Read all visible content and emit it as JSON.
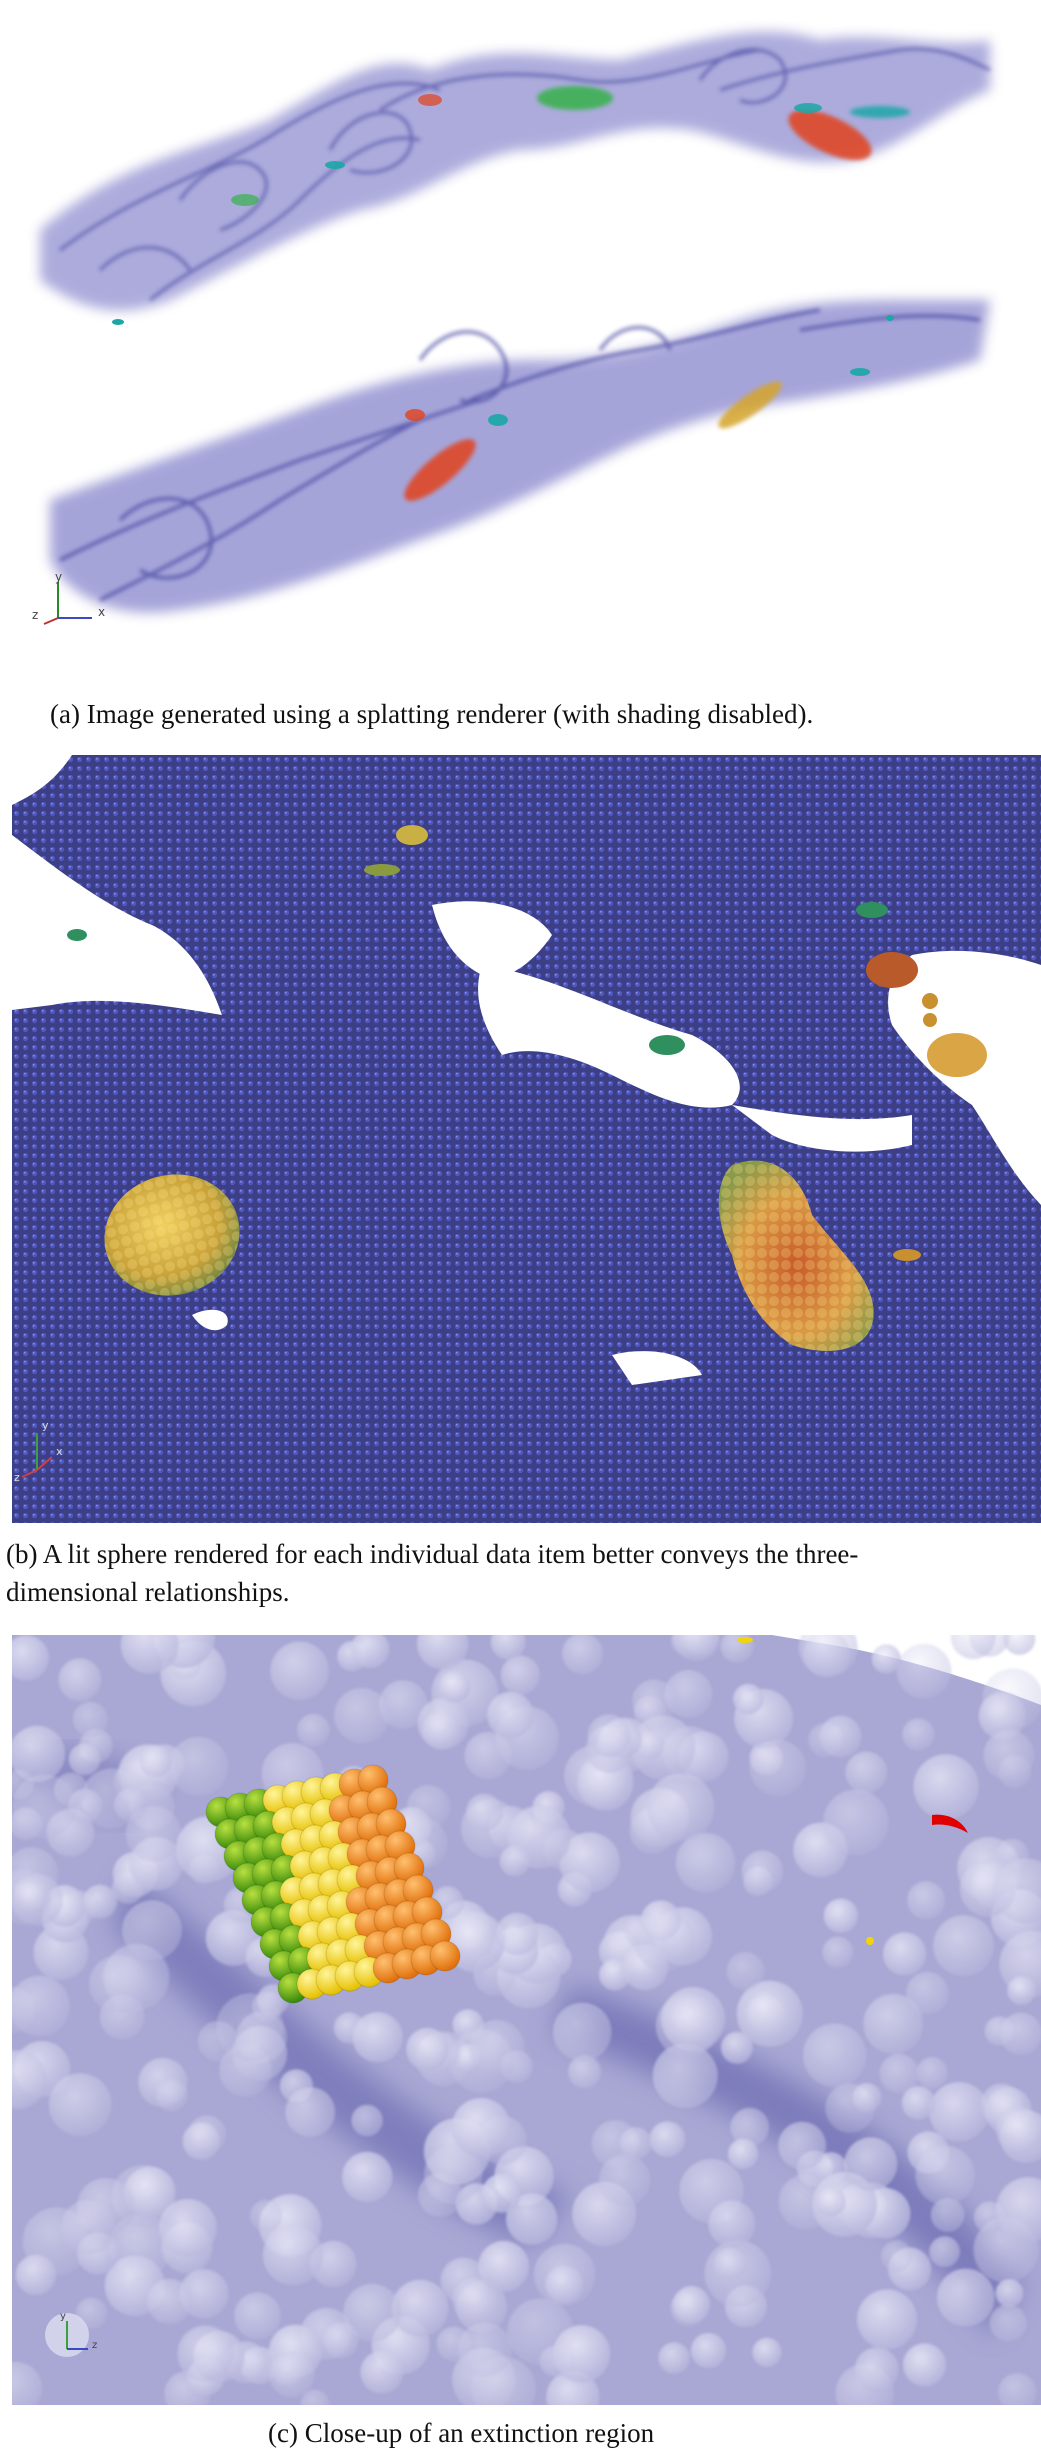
{
  "figure": {
    "panels": [
      {
        "id": "a",
        "caption": "(a)  Image generated using a splatting renderer (with shading disabled).",
        "axis_labels": [
          "y",
          "z",
          "x"
        ],
        "colors": {
          "background": "#ffffff",
          "smoke": "#3b3a9a",
          "accent_red": "#e2421a",
          "accent_green": "#34b24a",
          "accent_cyan": "#1aa7a6"
        }
      },
      {
        "id": "b",
        "caption_line1": "(b)  A lit sphere rendered for each individual data item better conveys the three-",
        "caption_line2": "dimensional relationships.",
        "axis_labels": [
          "y",
          "z",
          "x"
        ],
        "colors": {
          "background": "#3d3f86",
          "spheres": "#4a52b4",
          "hot": "#d9b545",
          "red": "#c85a2a",
          "green": "#2f8f5f"
        }
      },
      {
        "id": "c",
        "caption": "(c)  Close-up of an extinction region",
        "axis_labels": [
          "y",
          "z"
        ],
        "colors": {
          "background": "#a9a8d4",
          "bubble": "#dcdcf0",
          "green": "#5aa11a",
          "yellow": "#f2d40a",
          "orange": "#f08a12",
          "red": "#e00000"
        }
      }
    ]
  }
}
